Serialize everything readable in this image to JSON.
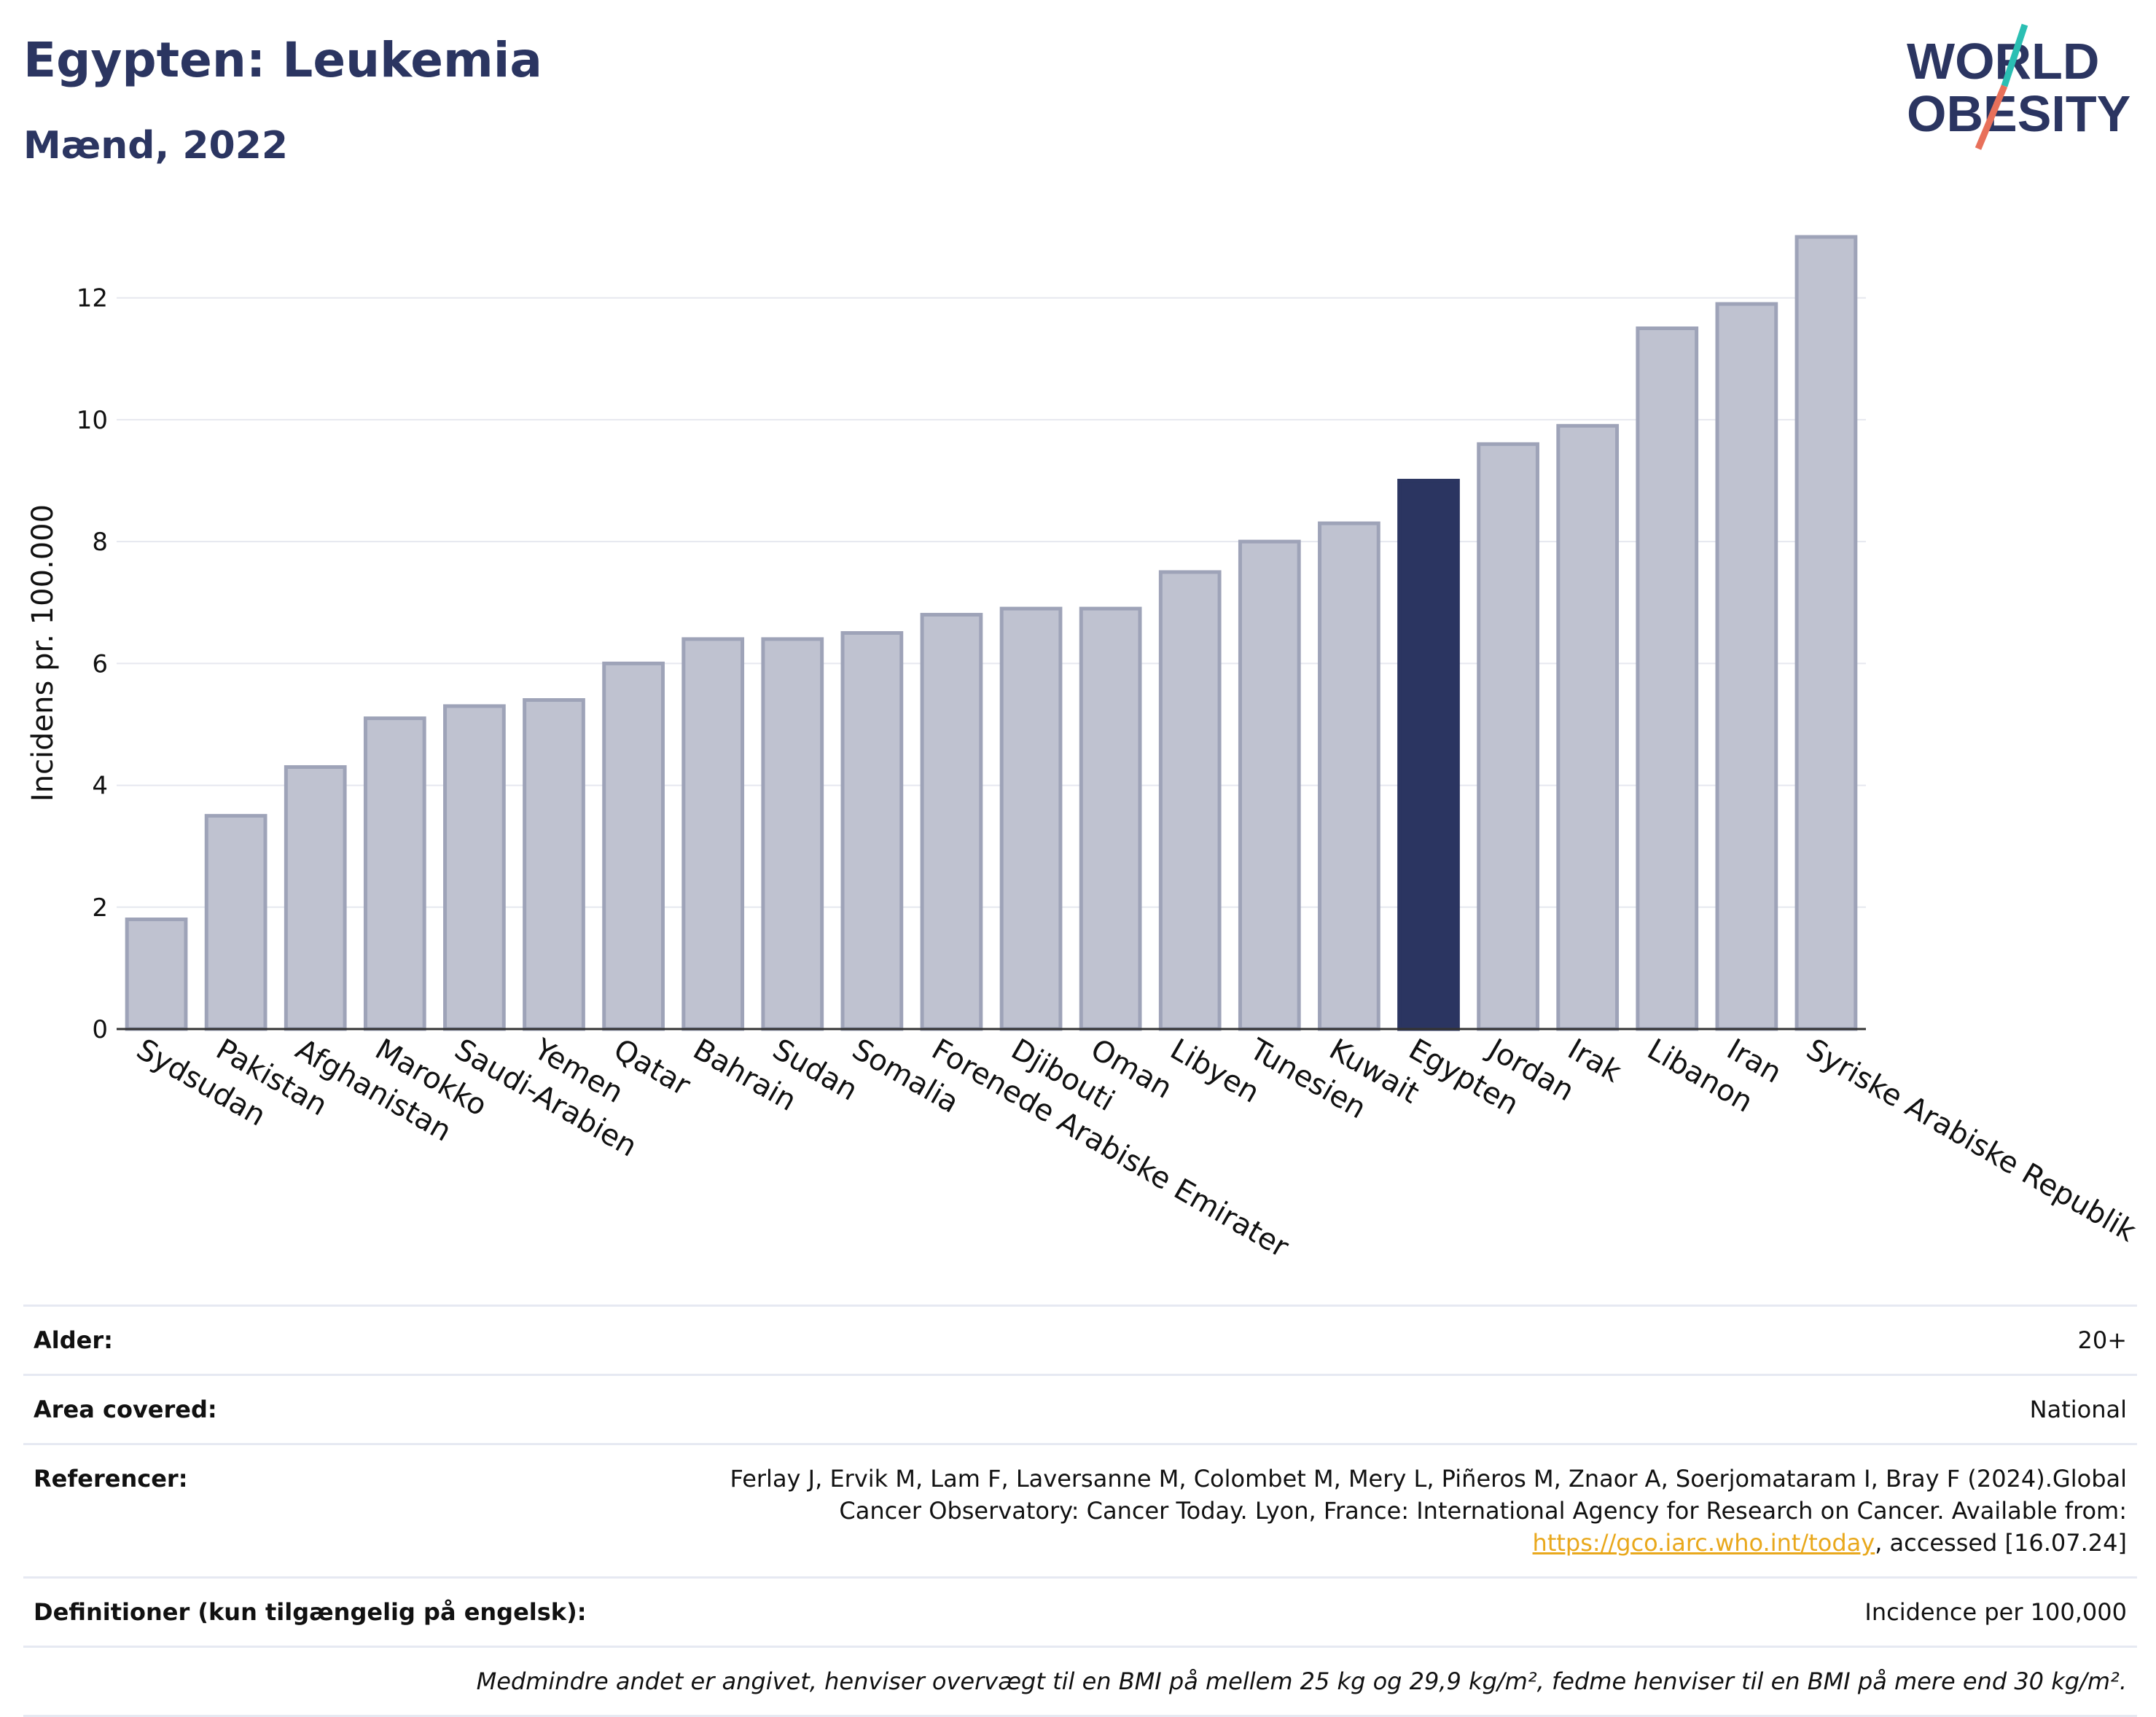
{
  "header": {
    "title": "Egypten: Leukemia",
    "subtitle": "Mænd, 2022"
  },
  "logo": {
    "line1": "WORLD",
    "line2": "OBESITY",
    "name": "world-obesity-logo"
  },
  "colors": {
    "bar": "#bfc2d0",
    "bar_border": "#9ea3b8",
    "highlight": "#2b3561",
    "grid": "#e6e8ef",
    "axis": "#333333",
    "logo_navy": "#2b3561",
    "logo_teal": "#2bbfb3",
    "logo_coral": "#e8705a"
  },
  "chart_data": {
    "type": "bar",
    "ylabel": "Incidens pr. 100.000",
    "xlabel": "",
    "ylim": [
      0,
      13.3
    ],
    "yticks": [
      0,
      2,
      4,
      6,
      8,
      10,
      12
    ],
    "grid": true,
    "highlight": "Egypten",
    "categories": [
      "Sydsudan",
      "Pakistan",
      "Afghanistan",
      "Marokko",
      "Saudi-Arabien",
      "Yemen",
      "Qatar",
      "Bahrain",
      "Sudan",
      "Somalia",
      "Forenede Arabiske Emirater",
      "Djibouti",
      "Oman",
      "Libyen",
      "Tunesien",
      "Kuwait",
      "Egypten",
      "Jordan",
      "Irak",
      "Libanon",
      "Iran",
      "Syriske Arabiske Republik"
    ],
    "values": [
      1.8,
      3.5,
      4.3,
      5.1,
      5.3,
      5.4,
      6.0,
      6.4,
      6.4,
      6.5,
      6.8,
      6.9,
      6.9,
      7.5,
      8.0,
      8.3,
      9.0,
      9.6,
      9.9,
      11.5,
      11.9,
      13.0
    ]
  },
  "footer": {
    "rows": [
      {
        "label": "Alder:",
        "value": "20+"
      },
      {
        "label": "Area covered:",
        "value": "National"
      },
      {
        "label": "Referencer:",
        "value_before_link": "Ferlay J, Ervik M, Lam F, Laversanne M, Colombet M, Mery L, Piñeros M, Znaor A, Soerjomataram I, Bray F (2024).Global Cancer Observatory: Cancer Today. Lyon, France: International Agency for Research on Cancer. Available from: ",
        "link": "https://gco.iarc.who.int/today",
        "value_after_link": ", accessed [16.07.24]"
      },
      {
        "label": "Definitioner (kun tilgængelig på engelsk):",
        "value": "Incidence per 100,000"
      }
    ],
    "note": "Medmindre andet er angivet, henviser overvægt til en BMI på mellem 25 kg og 29,9 kg/m², fedme henviser til en BMI på mere end 30 kg/m²."
  }
}
